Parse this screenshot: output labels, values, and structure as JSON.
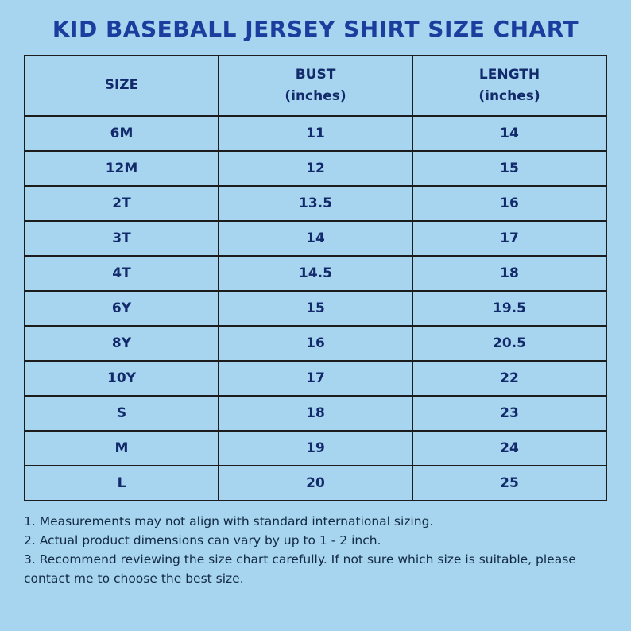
{
  "page": {
    "title": "KID BASEBALL JERSEY SHIRT SIZE CHART"
  },
  "colors": {
    "background": "#a7d4ee",
    "title": "#1b3e9e",
    "table_border": "#1c1c1c",
    "table_text": "#122a6b",
    "notes_text": "#122a45"
  },
  "chart_data": {
    "type": "table",
    "title": "KID BASEBALL JERSEY SHIRT SIZE CHART",
    "columns": [
      "SIZE",
      "BUST\n(inches)",
      "LENGTH\n(inches)"
    ],
    "rows": [
      [
        "6M",
        "11",
        "14"
      ],
      [
        "12M",
        "12",
        "15"
      ],
      [
        "2T",
        "13.5",
        "16"
      ],
      [
        "3T",
        "14",
        "17"
      ],
      [
        "4T",
        "14.5",
        "18"
      ],
      [
        "6Y",
        "15",
        "19.5"
      ],
      [
        "8Y",
        "16",
        "20.5"
      ],
      [
        "10Y",
        "17",
        "22"
      ],
      [
        "S",
        "18",
        "23"
      ],
      [
        "M",
        "19",
        "24"
      ],
      [
        "L",
        "20",
        "25"
      ]
    ],
    "layout": {
      "legend": "none",
      "grid": "full-borders"
    }
  },
  "notes": [
    "1. Measurements may not align with standard international sizing.",
    "2. Actual product dimensions can vary by up to 1 - 2 inch.",
    "3. Recommend reviewing the size chart carefully. If not sure which size is suitable, please contact me to choose the best size."
  ]
}
